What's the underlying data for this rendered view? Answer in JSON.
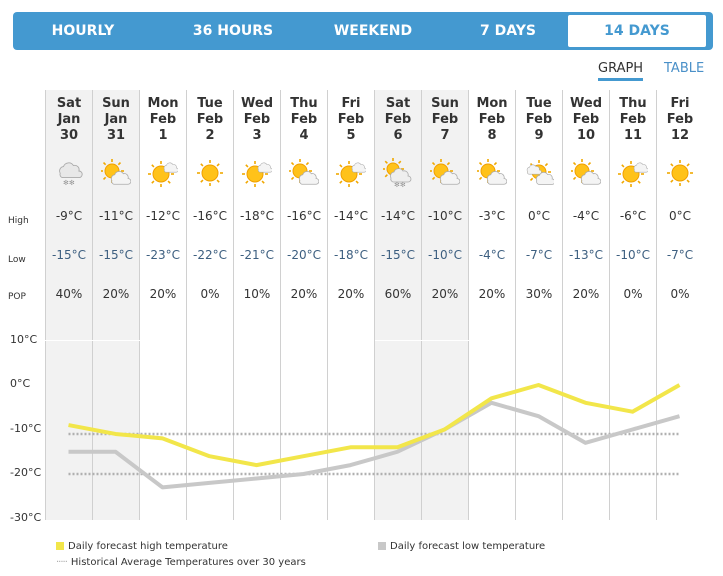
{
  "tabs": [
    {
      "label": "HOURLY"
    },
    {
      "label": "36 HOURS"
    },
    {
      "label": "WEEKEND"
    },
    {
      "label": "7 DAYS"
    },
    {
      "label": "14 DAYS",
      "selected": true
    }
  ],
  "views": {
    "graph": "GRAPH",
    "table": "TABLE",
    "active": "graph"
  },
  "row_labels": {
    "high": "High",
    "low": "Low",
    "pop": "POP"
  },
  "days": [
    {
      "dow": "Sat",
      "mon": "Jan",
      "date": "30",
      "icon": "snow-icon",
      "high": "-9°C",
      "low": "-15°C",
      "pop": "40%",
      "weekend": true
    },
    {
      "dow": "Sun",
      "mon": "Jan",
      "date": "31",
      "icon": "partly-cloudy-icon",
      "high": "-11°C",
      "low": "-15°C",
      "pop": "20%",
      "weekend": true
    },
    {
      "dow": "Mon",
      "mon": "Feb",
      "date": "1",
      "icon": "mostly-sunny-icon",
      "high": "-12°C",
      "low": "-23°C",
      "pop": "20%"
    },
    {
      "dow": "Tue",
      "mon": "Feb",
      "date": "2",
      "icon": "sunny-icon",
      "high": "-16°C",
      "low": "-22°C",
      "pop": "0%"
    },
    {
      "dow": "Wed",
      "mon": "Feb",
      "date": "3",
      "icon": "mostly-sunny-icon",
      "high": "-18°C",
      "low": "-21°C",
      "pop": "10%"
    },
    {
      "dow": "Thu",
      "mon": "Feb",
      "date": "4",
      "icon": "partly-cloudy-icon",
      "high": "-16°C",
      "low": "-20°C",
      "pop": "20%"
    },
    {
      "dow": "Fri",
      "mon": "Feb",
      "date": "5",
      "icon": "mostly-sunny-icon",
      "high": "-14°C",
      "low": "-18°C",
      "pop": "20%"
    },
    {
      "dow": "Sat",
      "mon": "Feb",
      "date": "6",
      "icon": "sun-snow-icon",
      "high": "-14°C",
      "low": "-15°C",
      "pop": "60%",
      "weekend": true
    },
    {
      "dow": "Sun",
      "mon": "Feb",
      "date": "7",
      "icon": "partly-cloudy-icon",
      "high": "-10°C",
      "low": "-10°C",
      "pop": "20%",
      "weekend": true
    },
    {
      "dow": "Mon",
      "mon": "Feb",
      "date": "8",
      "icon": "partly-cloudy-icon",
      "high": "-3°C",
      "low": "-4°C",
      "pop": "20%"
    },
    {
      "dow": "Tue",
      "mon": "Feb",
      "date": "9",
      "icon": "mostly-cloudy-icon",
      "high": "0°C",
      "low": "-7°C",
      "pop": "30%"
    },
    {
      "dow": "Wed",
      "mon": "Feb",
      "date": "10",
      "icon": "partly-cloudy-icon",
      "high": "-4°C",
      "low": "-13°C",
      "pop": "20%"
    },
    {
      "dow": "Thu",
      "mon": "Feb",
      "date": "11",
      "icon": "mostly-sunny-icon",
      "high": "-6°C",
      "low": "-10°C",
      "pop": "0%"
    },
    {
      "dow": "Fri",
      "mon": "Feb",
      "date": "12",
      "icon": "sunny-icon",
      "high": "0°C",
      "low": "-7°C",
      "pop": "0%"
    }
  ],
  "chart_data": {
    "type": "line",
    "ylim": [
      -30,
      10
    ],
    "yticks": [
      "10°C",
      "0°C",
      "-10°C",
      "-20°C",
      "-30°C"
    ],
    "ytick_values": [
      10,
      0,
      -10,
      -20,
      -30
    ],
    "series": [
      {
        "name": "Daily forecast high temperature",
        "color": "#f2e64a",
        "values": [
          -9,
          -11,
          -12,
          -16,
          -18,
          -16,
          -14,
          -14,
          -10,
          -3,
          0,
          -4,
          -6,
          0
        ]
      },
      {
        "name": "Daily forecast low temperature",
        "color": "#c8c8c8",
        "values": [
          -15,
          -15,
          -23,
          -22,
          -21,
          -20,
          -18,
          -15,
          -10,
          -4,
          -7,
          -13,
          -10,
          -7
        ]
      }
    ],
    "historical": {
      "name": "Historical Average Temperatures over 30 years",
      "color": "#b0b0b0",
      "high": -11,
      "low": -20
    }
  },
  "colors": {
    "accent": "#4499d0",
    "weekend": "#f2f2f2"
  }
}
